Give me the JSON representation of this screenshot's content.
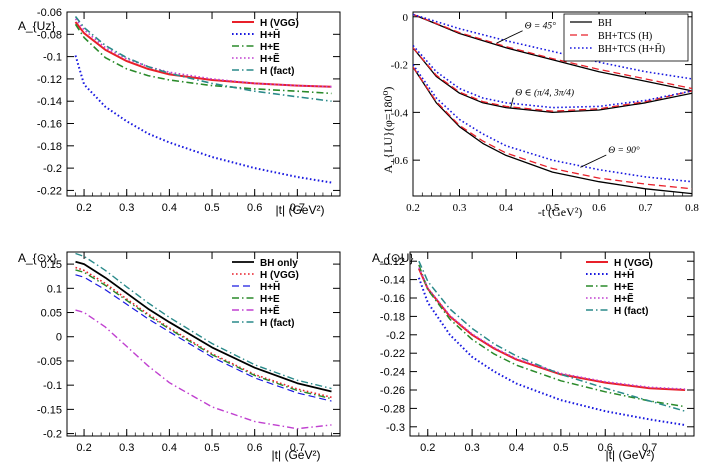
{
  "chart_data": [
    {
      "type": "line",
      "ylabel": "A_{Uz}",
      "xlabel": "|t| (GeV²)",
      "xlim": [
        0.16,
        0.8
      ],
      "ylim": [
        -0.225,
        -0.06
      ],
      "xticks": [
        0.2,
        0.3,
        0.4,
        0.5,
        0.6,
        0.7
      ],
      "yticks": [
        -0.06,
        -0.08,
        -0.1,
        -0.12,
        -0.14,
        -0.16,
        -0.18,
        -0.2,
        -0.22
      ],
      "ytick_labels": [
        "-0.06",
        "-0.08",
        "-0.1",
        "-0.12",
        "-0.14",
        "-0.16",
        "-0.18",
        "-0.2",
        "-0.22"
      ],
      "legend_position": "top-right",
      "grid": false,
      "series": [
        {
          "name": "H (VGG)",
          "color": "#e8202a",
          "style": "solid",
          "width": 2,
          "x": [
            0.18,
            0.2,
            0.25,
            0.3,
            0.35,
            0.4,
            0.5,
            0.6,
            0.7,
            0.78
          ],
          "y": [
            -0.069,
            -0.079,
            -0.094,
            -0.104,
            -0.111,
            -0.116,
            -0.121,
            -0.124,
            -0.126,
            -0.127
          ]
        },
        {
          "name": "H+H̃",
          "color": "#1a1ae0",
          "style": "dotted",
          "width": 2,
          "x": [
            0.18,
            0.2,
            0.25,
            0.3,
            0.35,
            0.4,
            0.5,
            0.6,
            0.7,
            0.78
          ],
          "y": [
            -0.099,
            -0.125,
            -0.145,
            -0.158,
            -0.169,
            -0.177,
            -0.19,
            -0.2,
            -0.208,
            -0.213
          ]
        },
        {
          "name": "H+E",
          "color": "#2a8a2a",
          "style": "dashdot",
          "width": 1.6,
          "x": [
            0.18,
            0.2,
            0.25,
            0.3,
            0.35,
            0.4,
            0.5,
            0.6,
            0.7,
            0.78
          ],
          "y": [
            -0.071,
            -0.083,
            -0.101,
            -0.111,
            -0.117,
            -0.121,
            -0.126,
            -0.129,
            -0.131,
            -0.133
          ]
        },
        {
          "name": "H+Ẽ",
          "color": "#c040d0",
          "style": "dotted",
          "width": 1.6,
          "x": [
            0.18,
            0.2,
            0.25,
            0.3,
            0.35,
            0.4,
            0.5,
            0.6,
            0.7,
            0.78
          ],
          "y": [
            -0.066,
            -0.076,
            -0.092,
            -0.102,
            -0.109,
            -0.114,
            -0.12,
            -0.124,
            -0.126,
            -0.127
          ]
        },
        {
          "name": "H (fact)",
          "color": "#2a8a8a",
          "style": "dashdot",
          "width": 1.6,
          "x": [
            0.18,
            0.2,
            0.25,
            0.3,
            0.35,
            0.4,
            0.5,
            0.6,
            0.7,
            0.78
          ],
          "y": [
            -0.064,
            -0.074,
            -0.09,
            -0.101,
            -0.109,
            -0.115,
            -0.124,
            -0.131,
            -0.136,
            -0.14
          ]
        }
      ],
      "annotations": []
    },
    {
      "type": "line",
      "ylabel": "A_{LU}(φ=180⁰)",
      "xlabel": "-t (GeV²)",
      "xlim": [
        0.2,
        0.8
      ],
      "ylim": [
        -0.75,
        0.02
      ],
      "xticks": [
        0.2,
        0.3,
        0.4,
        0.5,
        0.6,
        0.7,
        0.8
      ],
      "yticks": [
        0,
        -0.2,
        -0.4,
        -0.6
      ],
      "ytick_labels": [
        "0",
        "-0.2",
        "-0.4",
        "-0.6"
      ],
      "legend_position": "top-right",
      "grid": false,
      "series": [
        {
          "name": "BH",
          "color": "#000000",
          "style": "solid",
          "width": 1.3,
          "x": [
            0.2,
            0.25,
            0.3,
            0.4,
            0.5,
            0.6,
            0.7,
            0.8
          ],
          "y": [
            0.01,
            -0.03,
            -0.07,
            -0.13,
            -0.18,
            -0.23,
            -0.27,
            -0.31
          ]
        },
        {
          "name": "BH+TCS (H)",
          "color": "#e8202a",
          "style": "dashed",
          "width": 1.3,
          "x": [
            0.2,
            0.25,
            0.3,
            0.4,
            0.5,
            0.6,
            0.7,
            0.8
          ],
          "y": [
            0.01,
            -0.028,
            -0.066,
            -0.125,
            -0.175,
            -0.22,
            -0.26,
            -0.3
          ]
        },
        {
          "name": "BH+TCS (H+H̃)",
          "color": "#1a1ae0",
          "style": "dotted",
          "width": 1.6,
          "x": [
            0.2,
            0.25,
            0.3,
            0.4,
            0.5,
            0.6,
            0.7,
            0.8
          ],
          "y": [
            0.01,
            -0.02,
            -0.05,
            -0.1,
            -0.145,
            -0.19,
            -0.23,
            -0.26
          ]
        },
        {
          "name": "",
          "color": "#000000",
          "style": "solid",
          "width": 1.3,
          "x": [
            0.2,
            0.25,
            0.3,
            0.35,
            0.4,
            0.5,
            0.6,
            0.7,
            0.8
          ],
          "y": [
            -0.13,
            -0.25,
            -0.32,
            -0.36,
            -0.38,
            -0.4,
            -0.39,
            -0.36,
            -0.32
          ]
        },
        {
          "name": "",
          "color": "#e8202a",
          "style": "dashed",
          "width": 1.3,
          "x": [
            0.2,
            0.25,
            0.3,
            0.35,
            0.4,
            0.5,
            0.6,
            0.7,
            0.8
          ],
          "y": [
            -0.13,
            -0.245,
            -0.315,
            -0.355,
            -0.375,
            -0.395,
            -0.385,
            -0.355,
            -0.31
          ]
        },
        {
          "name": "",
          "color": "#1a1ae0",
          "style": "dotted",
          "width": 1.6,
          "x": [
            0.2,
            0.25,
            0.3,
            0.35,
            0.4,
            0.5,
            0.6,
            0.7,
            0.8
          ],
          "y": [
            -0.12,
            -0.23,
            -0.3,
            -0.34,
            -0.36,
            -0.38,
            -0.375,
            -0.35,
            -0.31
          ]
        },
        {
          "name": "",
          "color": "#000000",
          "style": "solid",
          "width": 1.3,
          "x": [
            0.2,
            0.25,
            0.3,
            0.35,
            0.4,
            0.5,
            0.6,
            0.7,
            0.8
          ],
          "y": [
            -0.21,
            -0.36,
            -0.46,
            -0.53,
            -0.58,
            -0.65,
            -0.69,
            -0.72,
            -0.74
          ]
        },
        {
          "name": "",
          "color": "#e8202a",
          "style": "dashed",
          "width": 1.3,
          "x": [
            0.2,
            0.25,
            0.3,
            0.35,
            0.4,
            0.5,
            0.6,
            0.7,
            0.8
          ],
          "y": [
            -0.21,
            -0.355,
            -0.455,
            -0.52,
            -0.57,
            -0.635,
            -0.675,
            -0.7,
            -0.72
          ]
        },
        {
          "name": "",
          "color": "#1a1ae0",
          "style": "dotted",
          "width": 1.6,
          "x": [
            0.2,
            0.25,
            0.3,
            0.35,
            0.4,
            0.5,
            0.6,
            0.7,
            0.8
          ],
          "y": [
            -0.2,
            -0.34,
            -0.43,
            -0.49,
            -0.54,
            -0.6,
            -0.64,
            -0.67,
            -0.69
          ]
        }
      ],
      "annotations": [
        {
          "text": "Θ = 45°",
          "x": 0.44,
          "y": -0.05,
          "arrow_to": [
            0.38,
            -0.11
          ]
        },
        {
          "text": "Θ ∈ (π/4, 3π/4)",
          "x": 0.42,
          "y": -0.33,
          "arrow_to": [
            0.41,
            -0.38
          ]
        },
        {
          "text": "Θ = 90°",
          "x": 0.62,
          "y": -0.57,
          "arrow_to": [
            0.56,
            -0.63
          ]
        }
      ]
    },
    {
      "type": "line",
      "ylabel": "A_{⊙x}",
      "xlabel": "|t| (GeV²)",
      "xlim": [
        0.16,
        0.8
      ],
      "ylim": [
        -0.205,
        0.175
      ],
      "xticks": [
        0.2,
        0.3,
        0.4,
        0.5,
        0.6,
        0.7
      ],
      "yticks": [
        0.15,
        0.1,
        0.05,
        0,
        -0.05,
        -0.1,
        -0.15,
        -0.2
      ],
      "ytick_labels": [
        "0.15",
        "0.1",
        "0.05",
        "0",
        "-0.05",
        "-0.1",
        "-0.15",
        "-0.2"
      ],
      "legend_position": "top-right",
      "grid": false,
      "series": [
        {
          "name": "BH only",
          "color": "#000000",
          "style": "solid",
          "width": 1.8,
          "x": [
            0.18,
            0.2,
            0.25,
            0.3,
            0.35,
            0.4,
            0.5,
            0.6,
            0.7,
            0.78
          ],
          "y": [
            0.155,
            0.15,
            0.122,
            0.09,
            0.058,
            0.03,
            -0.022,
            -0.064,
            -0.096,
            -0.113
          ]
        },
        {
          "name": "H (VGG)",
          "color": "#e8202a",
          "style": "dotted",
          "width": 1.6,
          "x": [
            0.18,
            0.2,
            0.25,
            0.3,
            0.35,
            0.4,
            0.5,
            0.6,
            0.7,
            0.78
          ],
          "y": [
            0.143,
            0.137,
            0.11,
            0.078,
            0.047,
            0.018,
            -0.035,
            -0.078,
            -0.108,
            -0.125
          ]
        },
        {
          "name": "H+H̃",
          "color": "#1a1ae0",
          "style": "dashed",
          "width": 1.2,
          "x": [
            0.18,
            0.2,
            0.25,
            0.3,
            0.35,
            0.4,
            0.5,
            0.6,
            0.7,
            0.78
          ],
          "y": [
            0.128,
            0.123,
            0.097,
            0.067,
            0.037,
            0.01,
            -0.042,
            -0.085,
            -0.116,
            -0.133
          ]
        },
        {
          "name": "H+E",
          "color": "#2a8a2a",
          "style": "dashdot",
          "width": 1.4,
          "x": [
            0.18,
            0.2,
            0.25,
            0.3,
            0.35,
            0.4,
            0.5,
            0.6,
            0.7,
            0.78
          ],
          "y": [
            0.138,
            0.133,
            0.106,
            0.075,
            0.044,
            0.016,
            -0.037,
            -0.08,
            -0.111,
            -0.128
          ]
        },
        {
          "name": "H+Ẽ",
          "color": "#c040d0",
          "style": "dashdot",
          "width": 1.4,
          "x": [
            0.18,
            0.2,
            0.25,
            0.3,
            0.35,
            0.4,
            0.5,
            0.6,
            0.7,
            0.78
          ],
          "y": [
            0.055,
            0.05,
            0.02,
            -0.02,
            -0.06,
            -0.095,
            -0.145,
            -0.175,
            -0.19,
            -0.182
          ]
        },
        {
          "name": "H (fact)",
          "color": "#2a8a8a",
          "style": "dashdot",
          "width": 1.4,
          "x": [
            0.18,
            0.2,
            0.25,
            0.3,
            0.35,
            0.4,
            0.5,
            0.6,
            0.7,
            0.78
          ],
          "y": [
            0.172,
            0.166,
            0.137,
            0.103,
            0.07,
            0.04,
            -0.014,
            -0.058,
            -0.09,
            -0.107
          ]
        }
      ],
      "annotations": []
    },
    {
      "type": "line",
      "ylabel": "A_{⊙U}",
      "xlabel": "|t| (GeV²)",
      "xlim": [
        0.16,
        0.8
      ],
      "ylim": [
        -0.31,
        -0.11
      ],
      "xticks": [
        0.2,
        0.3,
        0.4,
        0.5,
        0.6,
        0.7
      ],
      "yticks": [
        -0.12,
        -0.14,
        -0.16,
        -0.18,
        -0.2,
        -0.22,
        -0.24,
        -0.26,
        -0.28,
        -0.3
      ],
      "ytick_labels": [
        "-0.12",
        "-0.14",
        "-0.16",
        "-0.18",
        "-0.2",
        "-0.22",
        "-0.24",
        "-0.26",
        "-0.28",
        "-0.3"
      ],
      "legend_position": "top-right",
      "grid": false,
      "series": [
        {
          "name": "H (VGG)",
          "color": "#e8202a",
          "style": "solid",
          "width": 2,
          "x": [
            0.18,
            0.2,
            0.25,
            0.3,
            0.35,
            0.4,
            0.5,
            0.6,
            0.7,
            0.78
          ],
          "y": [
            -0.128,
            -0.15,
            -0.18,
            -0.2,
            -0.215,
            -0.227,
            -0.243,
            -0.252,
            -0.258,
            -0.26
          ]
        },
        {
          "name": "H+H̃",
          "color": "#1a1ae0",
          "style": "dotted",
          "width": 2,
          "x": [
            0.18,
            0.2,
            0.25,
            0.3,
            0.35,
            0.4,
            0.5,
            0.6,
            0.7,
            0.78
          ],
          "y": [
            -0.138,
            -0.165,
            -0.2,
            -0.224,
            -0.24,
            -0.253,
            -0.271,
            -0.283,
            -0.292,
            -0.298
          ]
        },
        {
          "name": "H+E",
          "color": "#2a8a2a",
          "style": "dashdot",
          "width": 1.5,
          "x": [
            0.18,
            0.2,
            0.25,
            0.3,
            0.35,
            0.4,
            0.5,
            0.6,
            0.7,
            0.78
          ],
          "y": [
            -0.124,
            -0.151,
            -0.183,
            -0.205,
            -0.221,
            -0.233,
            -0.25,
            -0.262,
            -0.272,
            -0.278
          ]
        },
        {
          "name": "H+Ẽ",
          "color": "#c040d0",
          "style": "dotted",
          "width": 1.5,
          "x": [
            0.18,
            0.2,
            0.25,
            0.3,
            0.35,
            0.4,
            0.5,
            0.6,
            0.7,
            0.78
          ],
          "y": [
            -0.127,
            -0.149,
            -0.179,
            -0.199,
            -0.214,
            -0.226,
            -0.242,
            -0.251,
            -0.257,
            -0.259
          ]
        },
        {
          "name": "H (fact)",
          "color": "#2a8a8a",
          "style": "dashdot",
          "width": 1.5,
          "x": [
            0.18,
            0.2,
            0.25,
            0.3,
            0.35,
            0.4,
            0.5,
            0.6,
            0.7,
            0.78
          ],
          "y": [
            -0.12,
            -0.142,
            -0.172,
            -0.193,
            -0.21,
            -0.223,
            -0.243,
            -0.258,
            -0.272,
            -0.283
          ]
        }
      ],
      "annotations": []
    }
  ]
}
